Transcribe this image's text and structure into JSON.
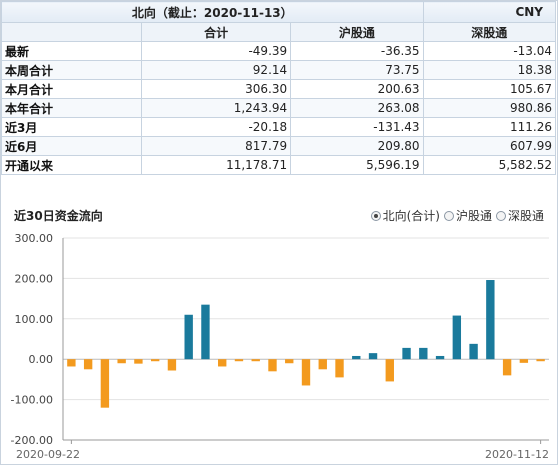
{
  "header": {
    "title": "北向（截止：2020-11-13）",
    "currency": "CNY"
  },
  "table": {
    "columns": [
      "合计",
      "沪股通",
      "深股通"
    ],
    "rows": [
      {
        "label": "最新",
        "values": [
          "-49.39",
          "-36.35",
          "-13.04"
        ]
      },
      {
        "label": "本周合计",
        "values": [
          "92.14",
          "73.75",
          "18.38"
        ]
      },
      {
        "label": "本月合计",
        "values": [
          "306.30",
          "200.63",
          "105.67"
        ]
      },
      {
        "label": "本年合计",
        "values": [
          "1,243.94",
          "263.08",
          "980.86"
        ]
      },
      {
        "label": "近3月",
        "values": [
          "-20.18",
          "-131.43",
          "111.26"
        ]
      },
      {
        "label": "近6月",
        "values": [
          "817.79",
          "209.80",
          "607.99"
        ]
      },
      {
        "label": "开通以来",
        "values": [
          "11,178.71",
          "5,596.19",
          "5,582.52"
        ]
      }
    ]
  },
  "chart_section": {
    "title": "近30日资金流向",
    "legend": [
      {
        "label": "北向(合计)",
        "selected": true
      },
      {
        "label": "沪股通",
        "selected": false
      },
      {
        "label": "深股通",
        "selected": false
      }
    ]
  },
  "colors": {
    "positive": "#1a7a9c",
    "negative": "#f39a1e",
    "grid": "#e3e3e3",
    "axis": "#999999"
  },
  "chart_data": {
    "type": "bar",
    "title": "",
    "xlabel": "",
    "ylabel": "",
    "ylim": [
      -200,
      300
    ],
    "yticks": [
      "-200.00",
      "-100.00",
      "0.00",
      "100.00",
      "200.00",
      "300.00"
    ],
    "x_start_label": "2020-09-22",
    "x_end_label": "2020-11-12",
    "values": [
      -18,
      -25,
      -120,
      -10,
      -11,
      -5,
      -28,
      110,
      135,
      -18,
      -5,
      -5,
      -30,
      -10,
      -65,
      -25,
      -45,
      8,
      15,
      -55,
      28,
      28,
      8,
      108,
      38,
      196,
      -40,
      -9,
      -5
    ]
  }
}
